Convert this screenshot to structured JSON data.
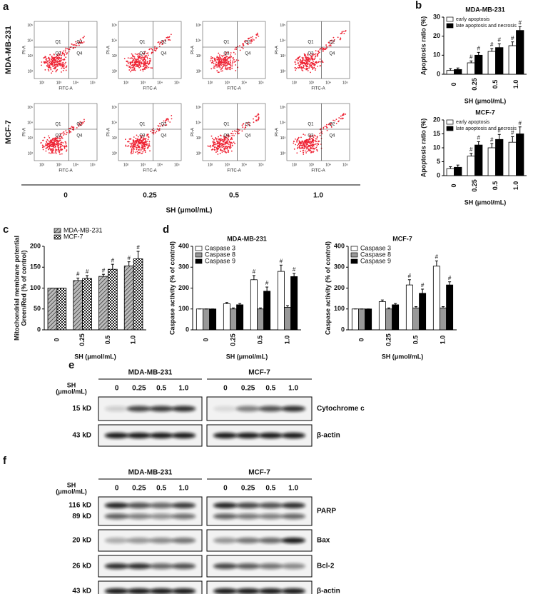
{
  "panel_labels": [
    "a",
    "b",
    "c",
    "d",
    "e",
    "f"
  ],
  "flow": {
    "rows": [
      "MDA-MB-231",
      "MCF-7"
    ],
    "quadrants": [
      "Q1",
      "Q2",
      "Q3",
      "Q4"
    ],
    "x_label": "FITC-A",
    "y_label": "PI-A",
    "ticks": [
      "10²",
      "10³",
      "10⁴",
      "10⁵"
    ],
    "doses": [
      "0",
      "0.25",
      "0.5",
      "1.0"
    ],
    "axis_title": "SH (μmol/mL)"
  },
  "chart_data": [
    {
      "type": "bar",
      "title": "MDA-MB-231",
      "categories": [
        "0",
        "0.25",
        "0.5",
        "1.0"
      ],
      "x_label": "SH (μmol/mL)",
      "y_label": [
        "Apoptosis ratio (%)"
      ],
      "ylim": [
        0,
        30
      ],
      "yticks": [
        0,
        10,
        20,
        30
      ],
      "legend": "top-left",
      "series": [
        {
          "name": "early apoptosis",
          "color": "#ffffff",
          "values": [
            2,
            6,
            12,
            15
          ],
          "errors": [
            1,
            1,
            1.5,
            2
          ],
          "significance": [
            null,
            "#",
            "#",
            "#"
          ]
        },
        {
          "name": "late apoptosis and necrosis",
          "color": "#000000",
          "values": [
            2.5,
            10,
            14,
            23
          ],
          "errors": [
            0.8,
            1.5,
            2,
            2
          ],
          "significance": [
            null,
            "#",
            "#",
            "#"
          ]
        }
      ]
    },
    {
      "type": "bar",
      "title": "MCF-7",
      "categories": [
        "0",
        "0.25",
        "0.5",
        "1.0"
      ],
      "x_label": "SH (μmol/mL)",
      "y_label": [
        "Apoptosis ratio (%)"
      ],
      "ylim": [
        0,
        20
      ],
      "yticks": [
        0,
        5,
        10,
        15,
        20
      ],
      "legend": "top-left",
      "series": [
        {
          "name": "early apoptosis",
          "color": "#ffffff",
          "values": [
            2.5,
            7,
            10,
            12
          ],
          "errors": [
            0.7,
            1,
            1.5,
            2
          ],
          "significance": [
            null,
            "#",
            "#",
            "#"
          ]
        },
        {
          "name": "late apoptosis and necrosis",
          "color": "#000000",
          "values": [
            3,
            11,
            13,
            15
          ],
          "errors": [
            0.8,
            1.2,
            1.8,
            2.5
          ],
          "significance": [
            null,
            "#",
            "#",
            "#"
          ]
        }
      ]
    },
    {
      "type": "bar",
      "categories": [
        "0",
        "0.25",
        "0.5",
        "1.0"
      ],
      "x_label": "SH (μmol/mL)",
      "y_label": [
        "Mitochondrial membrane potential",
        "Green/Red (% of control)"
      ],
      "ylim": [
        0,
        200
      ],
      "yticks": [
        0,
        50,
        100,
        150,
        200
      ],
      "legend": "top-left",
      "series": [
        {
          "name": "MDA-MB-231",
          "color": "#808080",
          "pattern": "hatch",
          "values": [
            100,
            118,
            128,
            153
          ],
          "errors": [
            0,
            6,
            5,
            10
          ],
          "significance": [
            null,
            "#",
            "#",
            "#"
          ]
        },
        {
          "name": "MCF-7",
          "color": "#ffffff",
          "pattern": "check",
          "values": [
            100,
            123,
            145,
            170
          ],
          "errors": [
            0,
            7,
            12,
            18
          ],
          "significance": [
            null,
            "#",
            "#",
            "#"
          ]
        }
      ]
    },
    {
      "type": "bar",
      "title": "MDA-MB-231",
      "categories": [
        "0",
        "0.25",
        "0.5",
        "1.0"
      ],
      "x_label": "SH (μmol/mL)",
      "y_label": [
        "Caspase activity (% of control)"
      ],
      "ylim": [
        0,
        400
      ],
      "yticks": [
        0,
        100,
        200,
        300,
        400
      ],
      "legend": "top-left",
      "series": [
        {
          "name": "Caspase 3",
          "color": "#ffffff",
          "values": [
            100,
            125,
            240,
            280
          ],
          "errors": [
            0,
            6,
            20,
            30
          ],
          "significance": [
            null,
            null,
            "#",
            "#"
          ]
        },
        {
          "name": "Caspase 8",
          "color": "#999999",
          "values": [
            100,
            100,
            100,
            108
          ],
          "errors": [
            0,
            5,
            5,
            8
          ],
          "significance": [
            null,
            null,
            null,
            null
          ]
        },
        {
          "name": "Caspase 9",
          "color": "#000000",
          "values": [
            100,
            120,
            185,
            255
          ],
          "errors": [
            0,
            6,
            20,
            15
          ],
          "significance": [
            null,
            null,
            "#",
            "#"
          ]
        }
      ]
    },
    {
      "type": "bar",
      "title": "MCF-7",
      "categories": [
        "0",
        "0.25",
        "0.5",
        "1.0"
      ],
      "x_label": "SH (μmol/mL)",
      "y_label": [
        "Caspase activity (% of control)"
      ],
      "ylim": [
        0,
        400
      ],
      "yticks": [
        0,
        100,
        200,
        300,
        400
      ],
      "legend": "top-left",
      "series": [
        {
          "name": "Caspase 3",
          "color": "#ffffff",
          "values": [
            100,
            135,
            215,
            305
          ],
          "errors": [
            0,
            8,
            25,
            25
          ],
          "significance": [
            null,
            null,
            "#",
            "#"
          ]
        },
        {
          "name": "Caspase 8",
          "color": "#999999",
          "values": [
            100,
            100,
            105,
            105
          ],
          "errors": [
            0,
            5,
            6,
            6
          ],
          "significance": [
            null,
            null,
            null,
            null
          ]
        },
        {
          "name": "Caspase 9",
          "color": "#000000",
          "values": [
            100,
            120,
            175,
            215
          ],
          "errors": [
            0,
            6,
            20,
            15
          ],
          "significance": [
            null,
            null,
            "#",
            "#"
          ]
        }
      ]
    }
  ],
  "western_e": {
    "row_header": [
      "SH",
      "(μmol/mL)"
    ],
    "groups": [
      "MDA-MB-231",
      "MCF-7"
    ],
    "doses": [
      "0",
      "0.25",
      "0.5",
      "1.0"
    ],
    "rows": [
      {
        "sizes": [
          "15 kD"
        ],
        "protein": "Cytochrome c"
      },
      {
        "sizes": [
          "43 kD"
        ],
        "protein": "β-actin"
      }
    ]
  },
  "western_f": {
    "row_header": [
      "SH",
      "(μmol/mL)"
    ],
    "groups": [
      "MDA-MB-231",
      "MCF-7"
    ],
    "doses": [
      "0",
      "0.25",
      "0.5",
      "1.0"
    ],
    "rows": [
      {
        "sizes": [
          "116 kD",
          "89 kD"
        ],
        "protein": "PARP"
      },
      {
        "sizes": [
          "20 kD"
        ],
        "protein": "Bax"
      },
      {
        "sizes": [
          "26 kD"
        ],
        "protein": "Bcl-2"
      },
      {
        "sizes": [
          "43 kD"
        ],
        "protein": "β-actin"
      }
    ]
  }
}
